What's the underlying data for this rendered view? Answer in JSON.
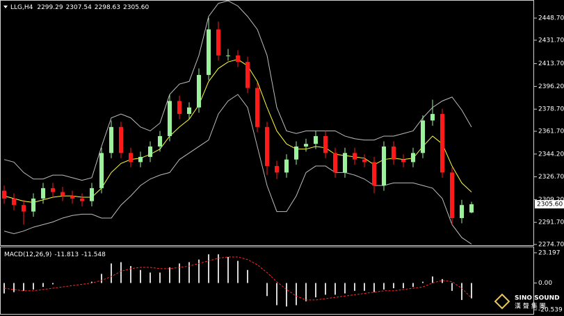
{
  "chart_data": [
    {
      "type": "candlestick",
      "symbol": "LLG,H4",
      "header_values": [
        "2299.29",
        "2307.54",
        "2298.63",
        "2305.60"
      ],
      "up_color": "#9cf29c",
      "down_color": "#ff1a1a",
      "open": [
        2316,
        2310,
        2305,
        2300,
        2310,
        2318,
        2315,
        2312,
        2310,
        2308,
        2318,
        2345,
        2365,
        2345,
        2338,
        2342,
        2350,
        2358,
        2385,
        2375,
        2380,
        2405,
        2440,
        2420,
        2420,
        2415,
        2395,
        2365,
        2335,
        2330,
        2340,
        2350,
        2352,
        2358,
        2345,
        2330,
        2345,
        2340,
        2338,
        2320,
        2350,
        2340,
        2338,
        2345,
        2370,
        2375,
        2330,
        2295,
        2299.29
      ],
      "high": [
        2320,
        2314,
        2309,
        2314,
        2322,
        2322,
        2319,
        2316,
        2314,
        2322,
        2349,
        2370,
        2369,
        2349,
        2346,
        2354,
        2362,
        2390,
        2389,
        2384,
        2410,
        2449,
        2446,
        2425,
        2424,
        2419,
        2399,
        2369,
        2339,
        2344,
        2354,
        2356,
        2362,
        2362,
        2349,
        2349,
        2349,
        2344,
        2342,
        2354,
        2354,
        2344,
        2349,
        2374,
        2386,
        2379,
        2334,
        2309,
        2307.54
      ],
      "low": [
        2306,
        2301,
        2290,
        2296,
        2306,
        2311,
        2308,
        2306,
        2304,
        2304,
        2314,
        2341,
        2341,
        2334,
        2334,
        2338,
        2346,
        2354,
        2371,
        2371,
        2376,
        2401,
        2416,
        2416,
        2411,
        2391,
        2361,
        2328,
        2325,
        2326,
        2336,
        2346,
        2348,
        2341,
        2326,
        2326,
        2336,
        2334,
        2314,
        2316,
        2336,
        2334,
        2334,
        2341,
        2366,
        2326,
        2290,
        2291,
        2298.63
      ],
      "close": [
        2310,
        2305,
        2300,
        2310,
        2318,
        2315,
        2312,
        2310,
        2308,
        2318,
        2345,
        2365,
        2345,
        2338,
        2342,
        2350,
        2358,
        2385,
        2375,
        2380,
        2405,
        2440,
        2420,
        2420,
        2415,
        2395,
        2365,
        2335,
        2330,
        2340,
        2350,
        2352,
        2358,
        2345,
        2330,
        2345,
        2340,
        2338,
        2320,
        2350,
        2340,
        2338,
        2345,
        2370,
        2375,
        2330,
        2295,
        2305,
        2305.6
      ],
      "lines": [
        {
          "color": "#ffff33",
          "values": [
            2312,
            2310,
            2308,
            2307,
            2309,
            2311,
            2312,
            2312,
            2311,
            2311,
            2318,
            2330,
            2337,
            2340,
            2341,
            2344,
            2348,
            2358,
            2365,
            2371,
            2382,
            2400,
            2410,
            2415,
            2417,
            2412,
            2400,
            2380,
            2362,
            2352,
            2348,
            2348,
            2350,
            2349,
            2344,
            2343,
            2342,
            2341,
            2336,
            2340,
            2341,
            2340,
            2341,
            2350,
            2358,
            2352,
            2335,
            2322,
            2315
          ]
        },
        {
          "color": "#bdbdbd",
          "values": [
            2340,
            2338,
            2330,
            2325,
            2325,
            2328,
            2328,
            2326,
            2324,
            2326,
            2350,
            2372,
            2375,
            2372,
            2365,
            2362,
            2368,
            2390,
            2398,
            2400,
            2420,
            2450,
            2460,
            2462,
            2458,
            2450,
            2440,
            2420,
            2380,
            2362,
            2360,
            2362,
            2362,
            2362,
            2362,
            2358,
            2356,
            2355,
            2355,
            2358,
            2358,
            2360,
            2362,
            2372,
            2380,
            2385,
            2388,
            2378,
            2365
          ]
        },
        {
          "color": "#bdbdbd",
          "values": [
            2285,
            2283,
            2285,
            2288,
            2290,
            2292,
            2295,
            2297,
            2298,
            2298,
            2295,
            2295,
            2305,
            2312,
            2320,
            2325,
            2328,
            2330,
            2340,
            2345,
            2350,
            2355,
            2375,
            2385,
            2390,
            2380,
            2350,
            2320,
            2300,
            2300,
            2312,
            2330,
            2335,
            2335,
            2330,
            2330,
            2328,
            2325,
            2320,
            2320,
            2322,
            2322,
            2322,
            2320,
            2318,
            2310,
            2290,
            2280,
            2275
          ]
        }
      ],
      "last_price_label": "2305.60",
      "ylim": [
        2274.7,
        2461
      ],
      "yticks": [
        {
          "value": 2448.7,
          "label": "2448.70"
        },
        {
          "value": 2431.7,
          "label": "2431.70"
        },
        {
          "value": 2413.7,
          "label": "2413.70"
        },
        {
          "value": 2396.2,
          "label": "2396.20"
        },
        {
          "value": 2378.7,
          "label": "2378.70"
        },
        {
          "value": 2361.7,
          "label": "2361.70"
        },
        {
          "value": 2344.2,
          "label": "2344.20"
        },
        {
          "value": 2326.7,
          "label": "2326.70"
        },
        {
          "value": 2309.2,
          "label": "2309.20"
        },
        {
          "value": 2291.7,
          "label": "2291.70"
        },
        {
          "value": 2274.7,
          "label": "2274.70"
        }
      ]
    },
    {
      "type": "macd",
      "title": "MACD(12,26,9)",
      "title_values": [
        -11.813,
        -11.548
      ],
      "histogram": {
        "color": "#d8d8d8",
        "values": [
          -8,
          -7,
          -6,
          -5,
          -3,
          -1,
          0,
          0,
          0,
          1,
          7,
          15,
          16,
          13,
          10,
          8,
          8,
          12,
          15,
          16,
          18,
          22,
          22,
          20,
          17,
          10,
          0,
          -10,
          -17,
          -18,
          -17,
          -14,
          -11,
          -9,
          -9,
          -8,
          -6,
          -6,
          -7,
          -5,
          -4,
          -4,
          -3,
          1,
          5,
          3,
          -6,
          -13,
          -11.813
        ]
      },
      "signal": {
        "color": "#ff2a2a",
        "values": [
          -4,
          -5,
          -6,
          -6,
          -5,
          -4,
          -3,
          -2,
          -1,
          0,
          2,
          5,
          9,
          11,
          12,
          12,
          11,
          11,
          12,
          13,
          15,
          17,
          19,
          20,
          20,
          18,
          14,
          8,
          1,
          -5,
          -10,
          -13,
          -13,
          -12,
          -11,
          -10,
          -9,
          -8,
          -7,
          -6,
          -6,
          -5,
          -4,
          -3,
          0,
          2,
          1,
          -4,
          -11.548
        ]
      },
      "ylim": [
        -23.7,
        26.9
      ],
      "yticks": [
        23.197,
        {
          "value": 0,
          "label": "0.00"
        },
        -20.539
      ]
    }
  ],
  "watermark": {
    "brand": "SINO SOUND",
    "chinese": "漢 聲 集 團"
  }
}
